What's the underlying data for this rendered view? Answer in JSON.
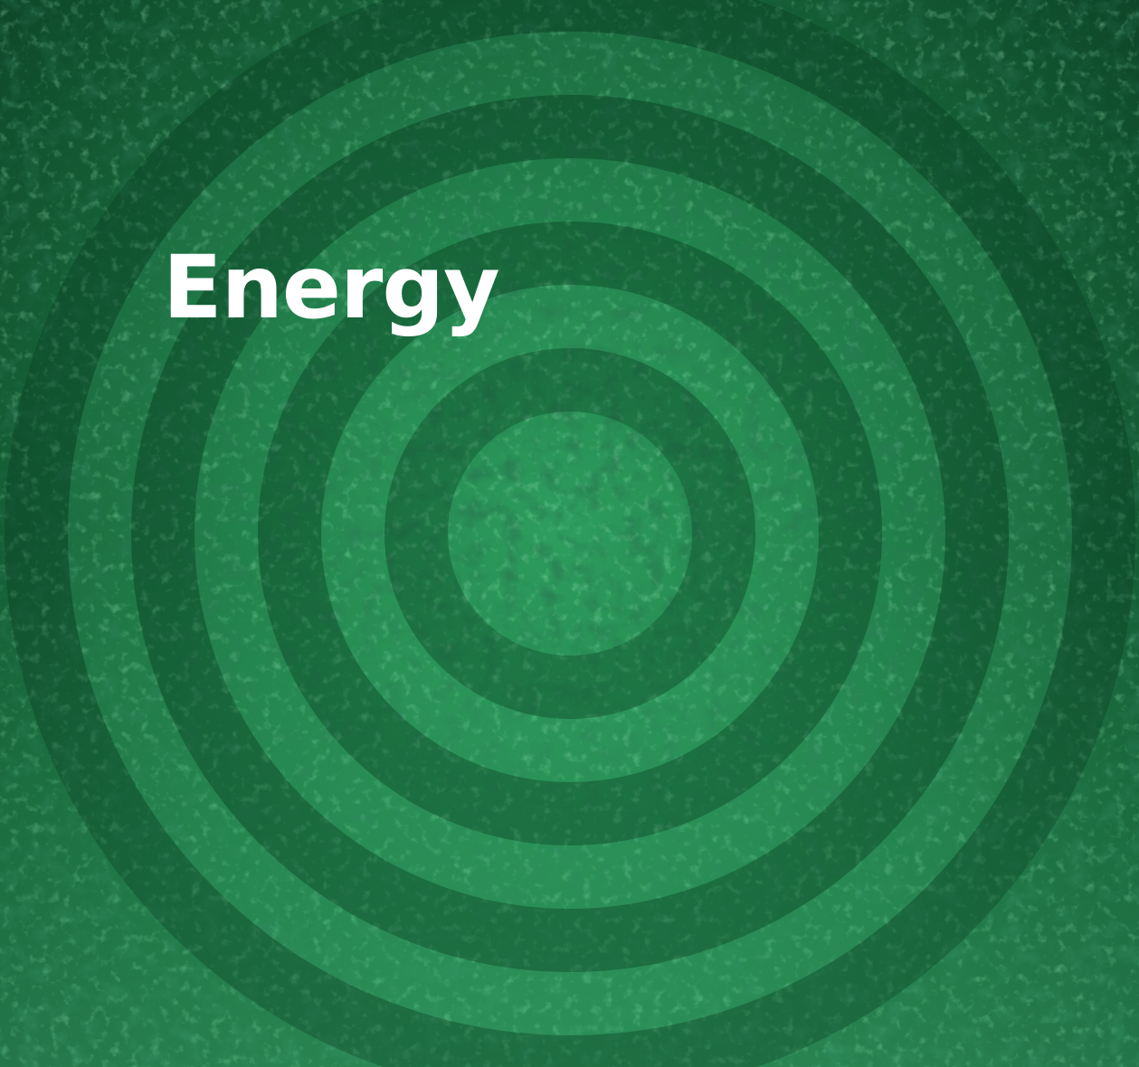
{
  "hero": {
    "title": "Energy"
  },
  "colors": {
    "background_dark": "#0b3d23",
    "background_mid": "#1a7a45",
    "background_light": "#3fbf78",
    "title": "#ffffff"
  }
}
